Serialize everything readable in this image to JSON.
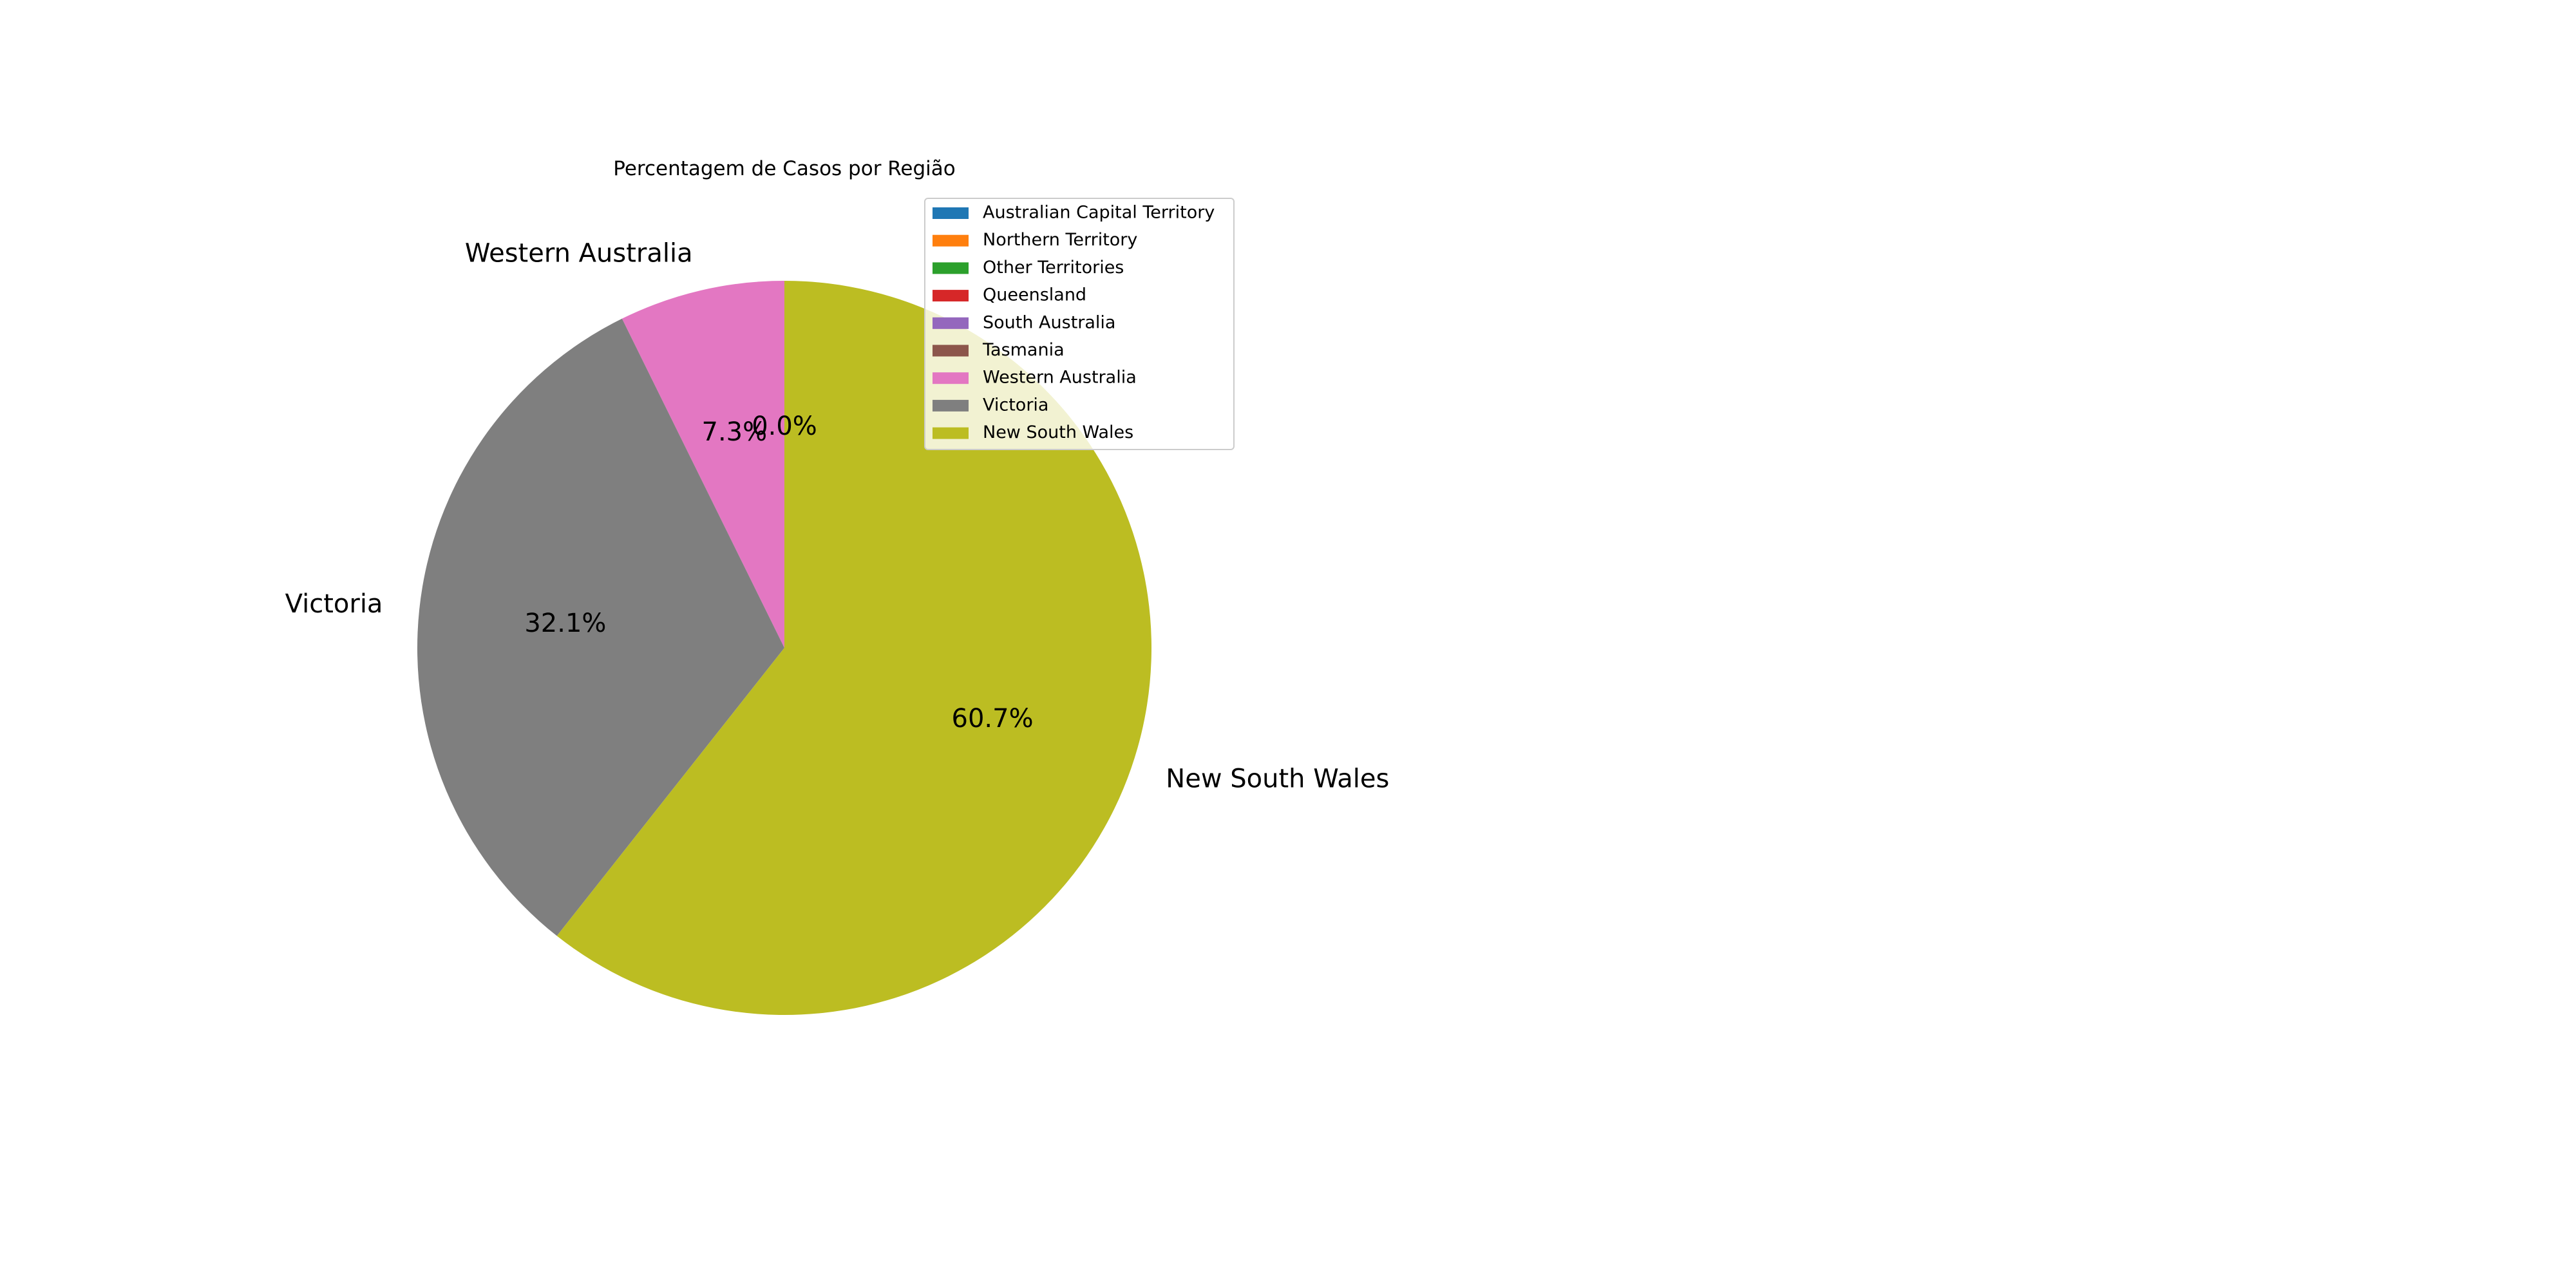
{
  "chart_data": {
    "type": "pie",
    "title": "Percentagem de Casos por Região",
    "slices": [
      {
        "label": "Australian Capital Territory",
        "value": 0.0,
        "pct_label": "0.0%",
        "color": "#1f77b4",
        "show_label": false
      },
      {
        "label": "Northern Territory",
        "value": 0.0,
        "pct_label": "0.0%",
        "color": "#ff7f0e",
        "show_label": false
      },
      {
        "label": "Other Territories",
        "value": 0.0,
        "pct_label": "0.0%",
        "color": "#2ca02c",
        "show_label": false
      },
      {
        "label": "Queensland",
        "value": 0.0,
        "pct_label": "0.0%",
        "color": "#d62728",
        "show_label": false
      },
      {
        "label": "South Australia",
        "value": 0.0,
        "pct_label": "0.0%",
        "color": "#9467bd",
        "show_label": false
      },
      {
        "label": "Tasmania",
        "value": 0.0,
        "pct_label": "0.0%",
        "color": "#8c564b",
        "show_label": false
      },
      {
        "label": "Western Australia",
        "value": 7.3,
        "pct_label": "7.3%",
        "color": "#e377c2",
        "show_label": true
      },
      {
        "label": "Victoria",
        "value": 32.1,
        "pct_label": "32.1%",
        "color": "#7f7f7f",
        "show_label": true
      },
      {
        "label": "New South Wales",
        "value": 60.7,
        "pct_label": "60.7%",
        "color": "#bcbd22",
        "show_label": true
      }
    ],
    "zero_pct_label": "0.0%",
    "start_angle_deg": 90,
    "direction": "counterclockwise",
    "legend_position": "upper-right-of-pie"
  }
}
